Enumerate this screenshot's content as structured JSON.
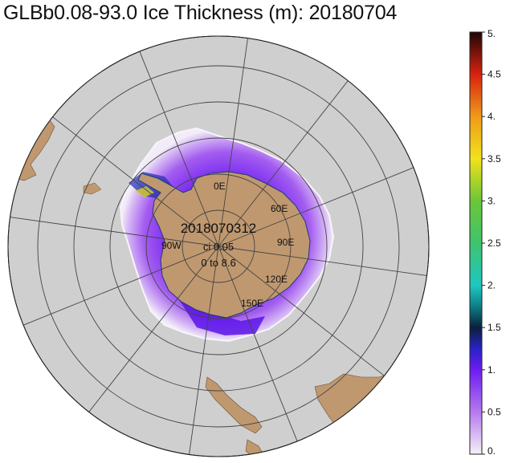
{
  "title": "GLBb0.08-93.0 Ice Thickness (m): 20180704",
  "annotation": {
    "date_code": "2018070312",
    "contour_interval": "ci 0.05",
    "range": "0 to 8.6"
  },
  "longitude_labels": [
    {
      "text": "0E",
      "lon": 0
    },
    {
      "text": "60E",
      "lon": 60
    },
    {
      "text": "90E",
      "lon": 90
    },
    {
      "text": "120E",
      "lon": 120
    },
    {
      "text": "150E",
      "lon": 150
    },
    {
      "text": "90W",
      "lon": -90
    }
  ],
  "colorbar": {
    "min": 0,
    "max": 5,
    "unit": "m",
    "tick_labels": [
      "0.",
      "0.5",
      "1.",
      "1.5",
      "2.",
      "2.5",
      "3.",
      "3.5",
      "4.",
      "4.5",
      "5."
    ],
    "stops": [
      {
        "value": 0.0,
        "color": "#f4f1f7"
      },
      {
        "value": 0.5,
        "color": "#b679ee"
      },
      {
        "value": 1.0,
        "color": "#6d1cf0"
      },
      {
        "value": 1.25,
        "color": "#2a22c8"
      },
      {
        "value": 1.5,
        "color": "#0b1f3a"
      },
      {
        "value": 1.75,
        "color": "#0c7f86"
      },
      {
        "value": 2.0,
        "color": "#1ec7c2"
      },
      {
        "value": 2.5,
        "color": "#3fc46e"
      },
      {
        "value": 3.0,
        "color": "#6cc638"
      },
      {
        "value": 3.5,
        "color": "#f2e21c"
      },
      {
        "value": 4.0,
        "color": "#ef9a1a"
      },
      {
        "value": 4.5,
        "color": "#d8220f"
      },
      {
        "value": 5.0,
        "color": "#200606"
      }
    ]
  },
  "colors": {
    "ocean": "#cfcfcf",
    "land": "#c0986f",
    "grid": "#444444",
    "outside": "#ffffff"
  }
}
